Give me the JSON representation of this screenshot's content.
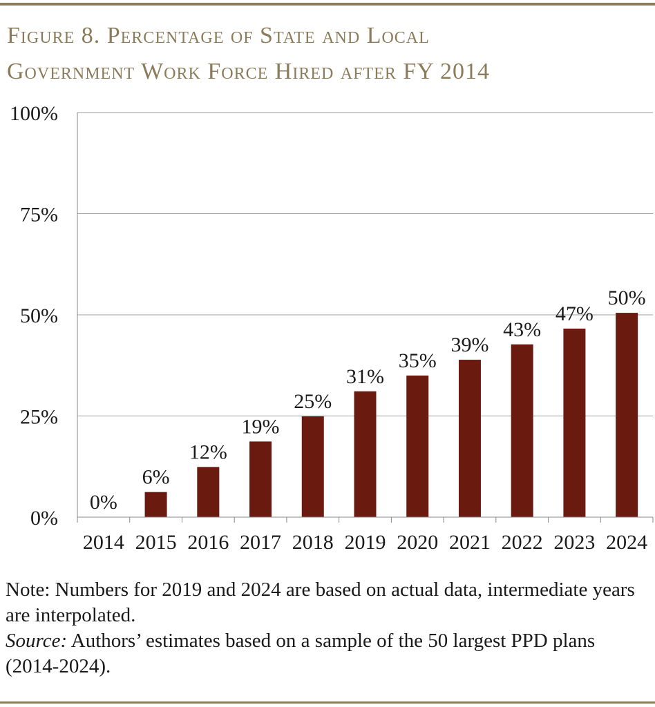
{
  "title_lines": [
    "Figure 8. Percentage of State and Local",
    "Government Work Force Hired after FY 2014"
  ],
  "chart_data": {
    "type": "bar",
    "title": "Figure 8. Percentage of State and Local Government Work Force Hired after FY 2014",
    "xlabel": "",
    "ylabel": "",
    "categories": [
      "2014",
      "2015",
      "2016",
      "2017",
      "2018",
      "2019",
      "2020",
      "2021",
      "2022",
      "2023",
      "2024"
    ],
    "values": [
      0,
      6.2,
      12.4,
      18.7,
      24.9,
      31.1,
      35.0,
      38.9,
      42.7,
      46.6,
      50.5
    ],
    "data_labels": [
      "0%",
      "6%",
      "12%",
      "19%",
      "25%",
      "31%",
      "35%",
      "39%",
      "43%",
      "47%",
      "50%"
    ],
    "ylim": [
      0,
      100
    ],
    "yticks": [
      0,
      25,
      50,
      75,
      100
    ],
    "ytick_labels": [
      "0%",
      "25%",
      "50%",
      "75%",
      "100%"
    ],
    "grid": true,
    "legend": "none",
    "bar_color": "#6b1a10"
  },
  "note": {
    "text": "Note: Numbers for 2019 and 2024 are based on actual data, intermediate years are interpolated.",
    "source_label": "Source:",
    "source_text": " Authors’ estimates based on a sample of the 50 largest PPD plans (2014-2024)."
  }
}
